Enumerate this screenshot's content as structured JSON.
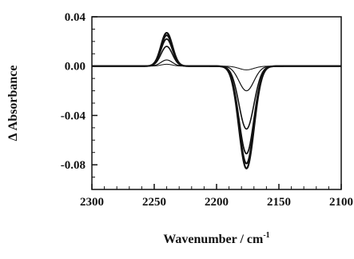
{
  "chart_data": {
    "type": "line",
    "xlabel": "Wavenumber / cm",
    "xlabel_superscript": "-1",
    "ylabel": "Δ Absorbance",
    "xlim": [
      2300,
      2100
    ],
    "ylim": [
      -0.1,
      0.04
    ],
    "x_reversed": true,
    "x_ticks": [
      2300,
      2250,
      2200,
      2150,
      2100
    ],
    "x_tick_labels": [
      "2300",
      "2250",
      "2200",
      "2150",
      "2100"
    ],
    "y_ticks": [
      0.04,
      0.0,
      -0.04,
      -0.08
    ],
    "y_tick_labels": [
      "0.04",
      "0.00",
      "-0.04",
      "-0.08"
    ],
    "grid": false,
    "legend": "none",
    "line_color": "#111111",
    "series": [
      {
        "peak_pos": {
          "center": 2240,
          "height": 0.0015
        },
        "peak_neg": {
          "center": 2176,
          "depth": -0.003
        },
        "stroke_width": 1.0
      },
      {
        "peak_pos": {
          "center": 2240,
          "height": 0.005
        },
        "peak_neg": {
          "center": 2176,
          "depth": -0.02
        },
        "stroke_width": 1.2
      },
      {
        "peak_pos": {
          "center": 2240,
          "height": 0.016
        },
        "peak_neg": {
          "center": 2176,
          "depth": -0.051
        },
        "stroke_width": 1.6
      },
      {
        "peak_pos": {
          "center": 2240,
          "height": 0.022
        },
        "peak_neg": {
          "center": 2176,
          "depth": -0.071
        },
        "stroke_width": 1.8
      },
      {
        "peak_pos": {
          "center": 2240,
          "height": 0.025
        },
        "peak_neg": {
          "center": 2176,
          "depth": -0.079
        },
        "stroke_width": 2.0
      },
      {
        "peak_pos": {
          "center": 2240,
          "height": 0.027
        },
        "peak_neg": {
          "center": 2176,
          "depth": -0.083
        },
        "stroke_width": 2.2
      }
    ]
  }
}
